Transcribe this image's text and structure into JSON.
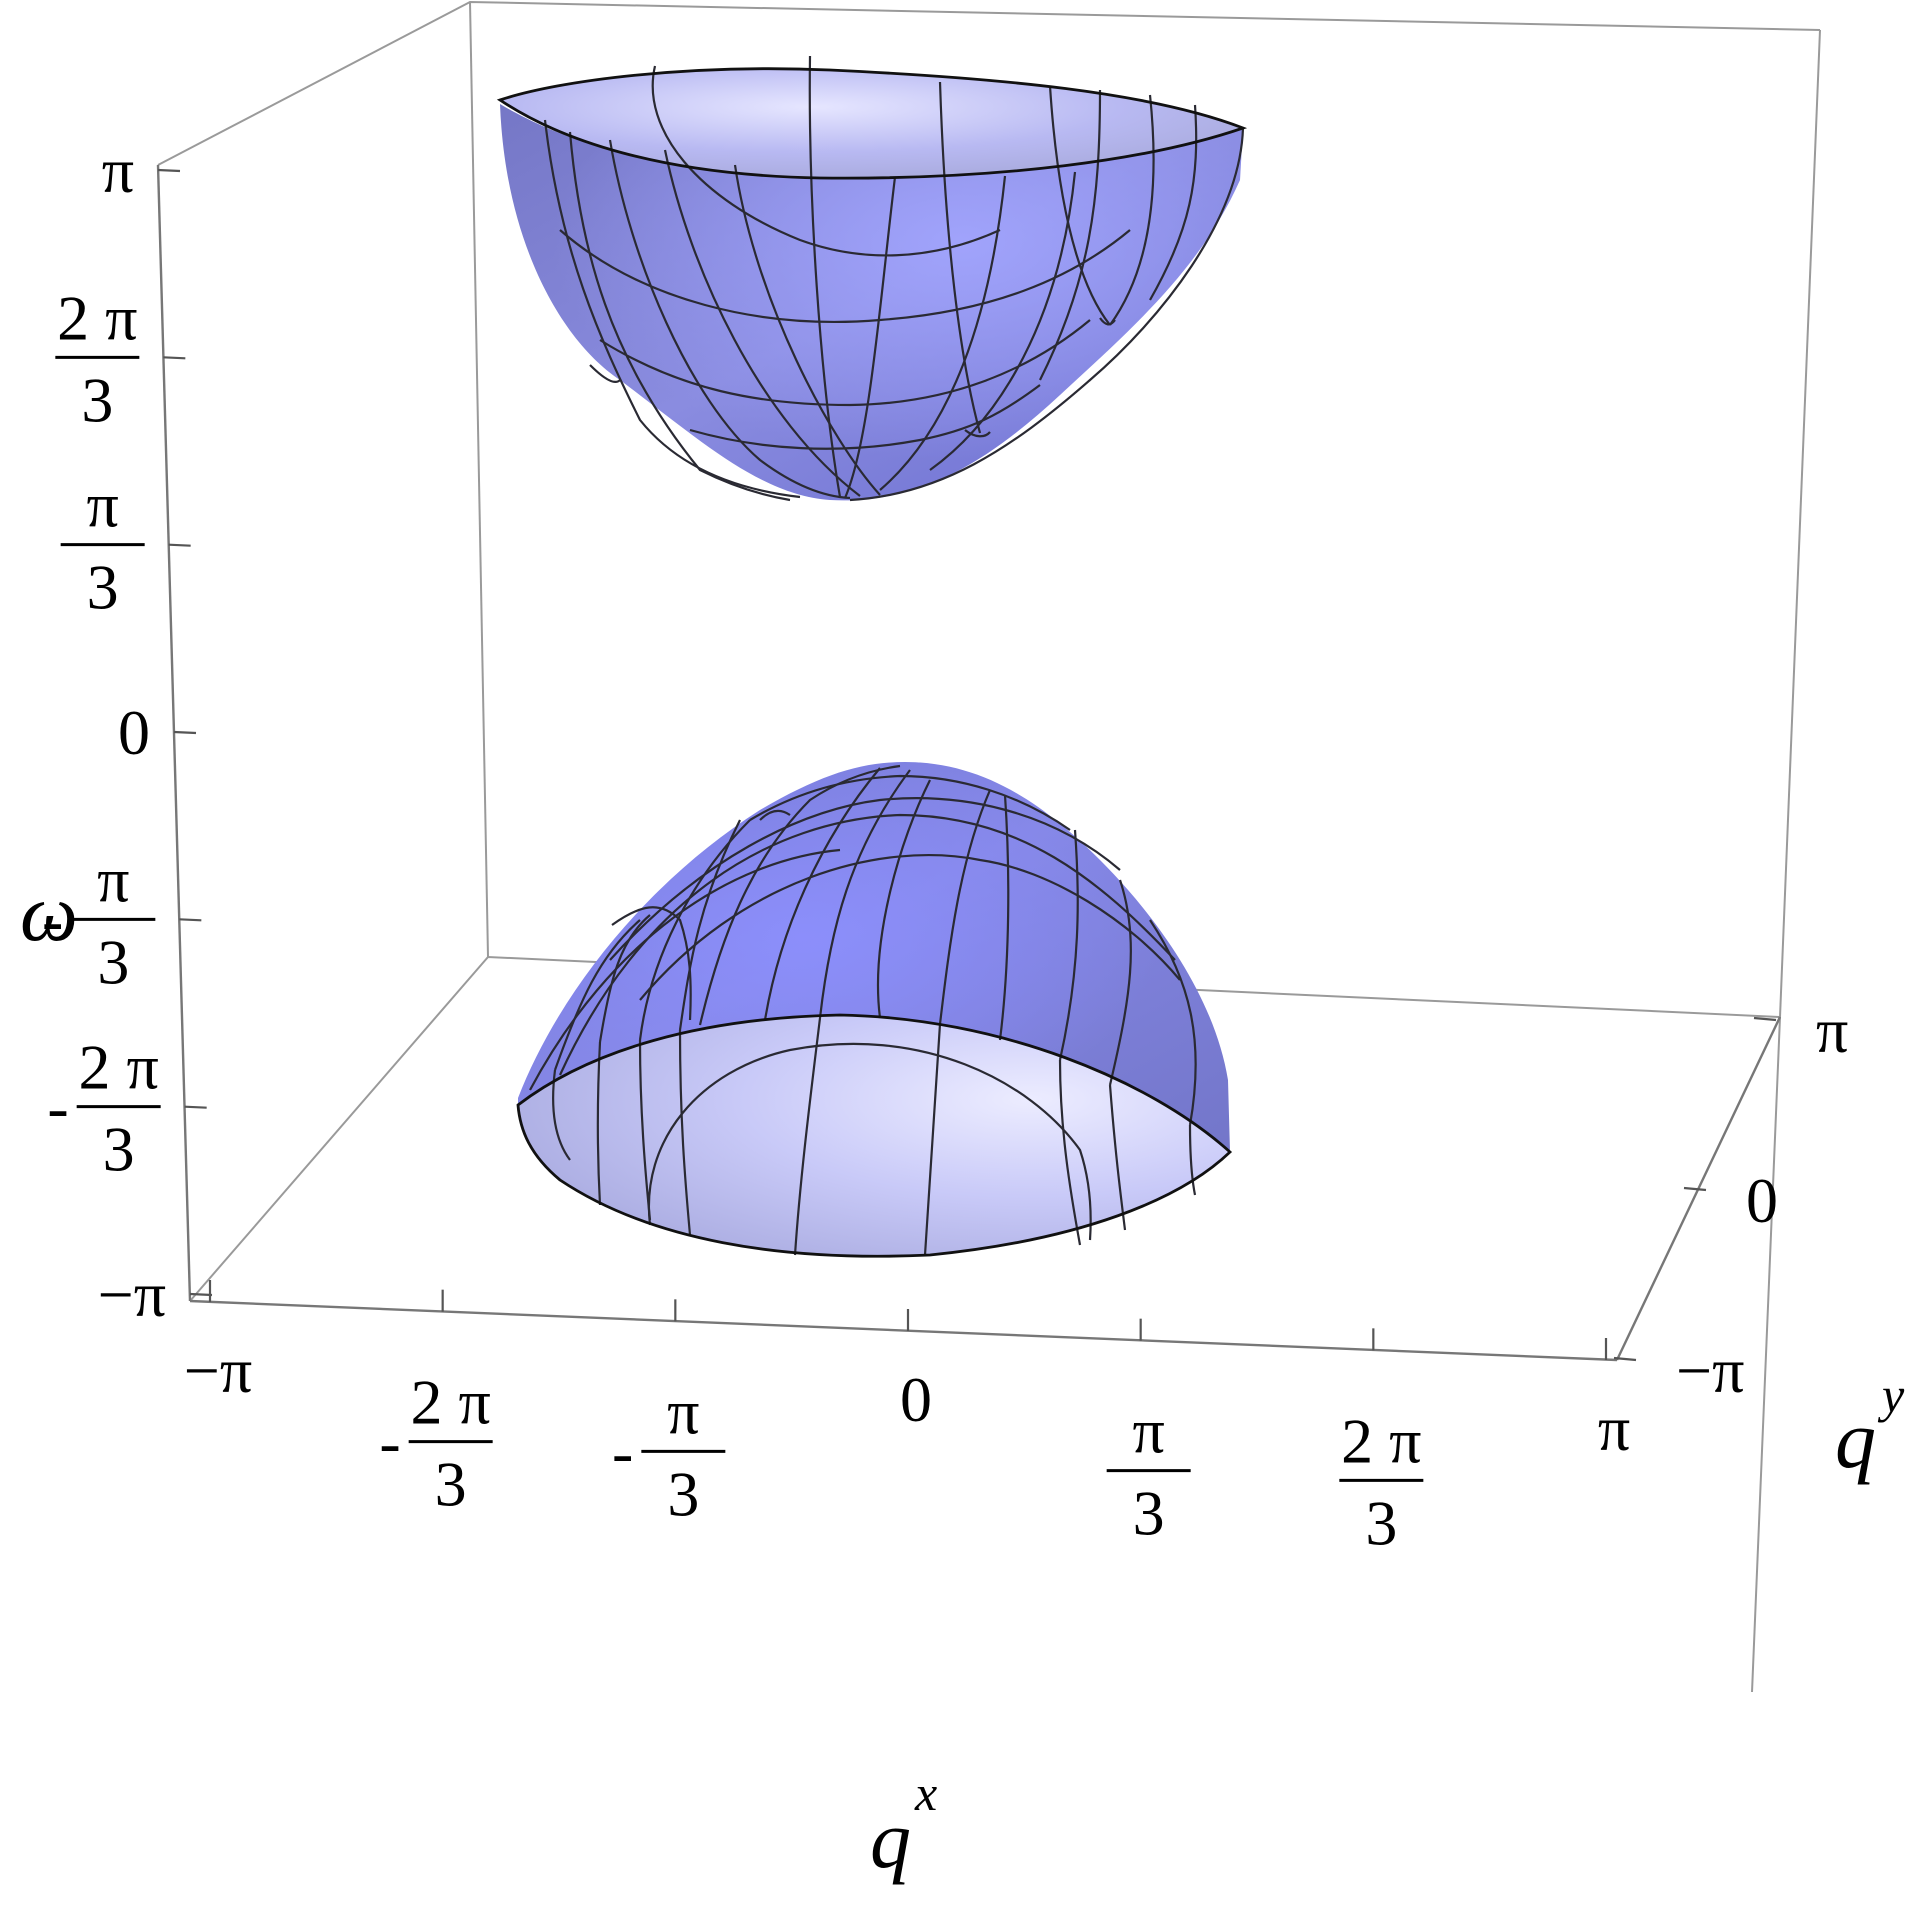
{
  "chart_data": {
    "type": "surface3d",
    "title": "",
    "surfaces": [
      {
        "name": "",
        "description": "upper band, concave up",
        "z_min": 2.0,
        "z_max": 3.14159
      },
      {
        "name": "",
        "description": "lower band, concave down",
        "z_min": -3.14159,
        "z_max": -2.0
      }
    ],
    "xlabel": {
      "base": "q",
      "sup": "x"
    },
    "ylabel": {
      "base": "q",
      "sup": "y"
    },
    "zlabel": "ω",
    "xlim": [
      -3.14159,
      3.14159
    ],
    "ylim": [
      -3.14159,
      3.14159
    ],
    "zlim": [
      -3.14159,
      3.14159
    ],
    "x_ticks": [
      {
        "value": -3.14159,
        "label": "−π"
      },
      {
        "value": -2.0944,
        "label": "-2π/3",
        "sign": "-",
        "num": "2 π",
        "den": "3"
      },
      {
        "value": -1.0472,
        "label": "-π/3",
        "sign": "-",
        "num": "π",
        "den": "3"
      },
      {
        "value": 0,
        "label": "0"
      },
      {
        "value": 1.0472,
        "label": "π/3",
        "num": "π",
        "den": "3"
      },
      {
        "value": 2.0944,
        "label": "2π/3",
        "num": "2 π",
        "den": "3"
      },
      {
        "value": 3.14159,
        "label": "π"
      }
    ],
    "y_ticks": [
      {
        "value": -3.14159,
        "label": "−π"
      },
      {
        "value": 0,
        "label": "0"
      },
      {
        "value": 3.14159,
        "label": "π"
      }
    ],
    "z_ticks": [
      {
        "value": -3.14159,
        "label": "−π"
      },
      {
        "value": -2.0944,
        "label": "-2π/3",
        "sign": "-",
        "num": "2 π",
        "den": "3"
      },
      {
        "value": -1.0472,
        "label": "-π/3",
        "sign": "-",
        "num": "π",
        "den": "3"
      },
      {
        "value": 0,
        "label": "0"
      },
      {
        "value": 1.0472,
        "label": "π/3",
        "num": "π",
        "den": "3"
      },
      {
        "value": 2.0944,
        "label": "2π/3",
        "num": "2 π",
        "den": "3"
      },
      {
        "value": 3.14159,
        "label": "π"
      }
    ],
    "colors": {
      "surface": "#7b7fe6",
      "surface_light": "#dcdcff",
      "mesh": "#2a2a33",
      "box": "#9a9a9a"
    },
    "grid": false,
    "legend": "none"
  }
}
